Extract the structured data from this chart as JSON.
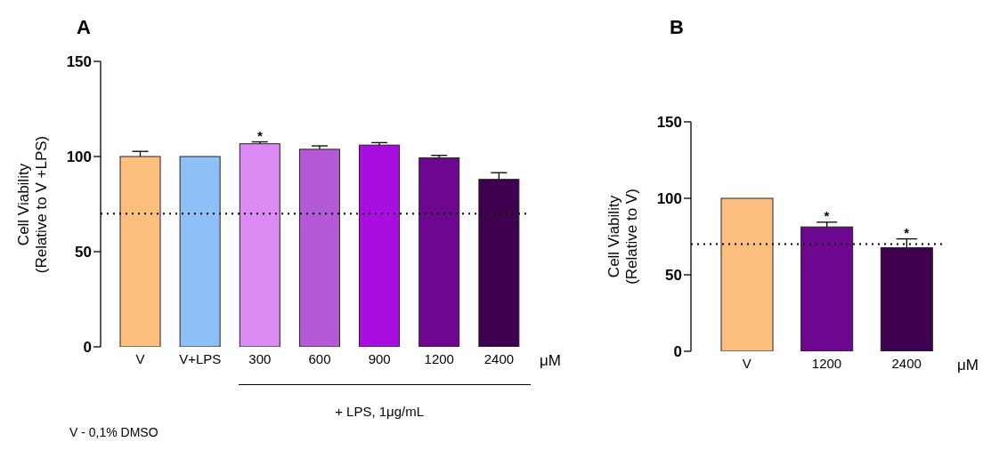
{
  "chart_data": [
    {
      "type": "bar",
      "title": "A",
      "ylabel": "Cell Viability\n(Relative to V +LPS)",
      "xlabel": "+ LPS, 1μg/mL",
      "categories": [
        "V",
        "V+LPS",
        "300",
        "600",
        "900",
        "1200",
        "2400"
      ],
      "values": [
        100,
        100,
        106.7,
        103.8,
        106,
        99.3,
        88
      ],
      "errors": [
        2.7,
        null,
        1,
        1.8,
        1.3,
        1.3,
        3.5
      ],
      "colors": [
        "#fdbf80",
        "#8fbff7",
        "#dc8af3",
        "#b55ad6",
        "#a80ee0",
        "#6e0790",
        "#3e004f"
      ],
      "ylim": [
        0,
        150
      ],
      "yticks": [
        0,
        50,
        100,
        150
      ],
      "grid": false,
      "legend": false,
      "ref_lines": [
        {
          "axis": "y",
          "value": 70,
          "color": "#000000",
          "line_style": "dotted"
        }
      ],
      "annotations": [
        {
          "text": "*",
          "x": "300",
          "y": 107.7
        },
        "μM",
        "V - 0,1% DMSO"
      ]
    },
    {
      "type": "bar",
      "title": "B",
      "ylabel": "Cell Viability\n(Relative to V)",
      "categories": [
        "V",
        "1200",
        "2400"
      ],
      "values": [
        100,
        81.3,
        67.7
      ],
      "errors": [
        null,
        3.1,
        5.8
      ],
      "colors": [
        "#fdbf80",
        "#6e0790",
        "#3e004f"
      ],
      "ylim": [
        0,
        150
      ],
      "yticks": [
        0,
        50,
        100,
        150
      ],
      "grid": false,
      "legend": false,
      "ref_lines": [
        {
          "axis": "y",
          "value": 70,
          "color": "#000000",
          "line_style": "dotted"
        }
      ],
      "annotations": [
        {
          "text": "*",
          "x": "1200",
          "y": 84.4
        },
        {
          "text": "*",
          "x": "2400",
          "y": 73.5
        },
        "μM"
      ]
    }
  ]
}
